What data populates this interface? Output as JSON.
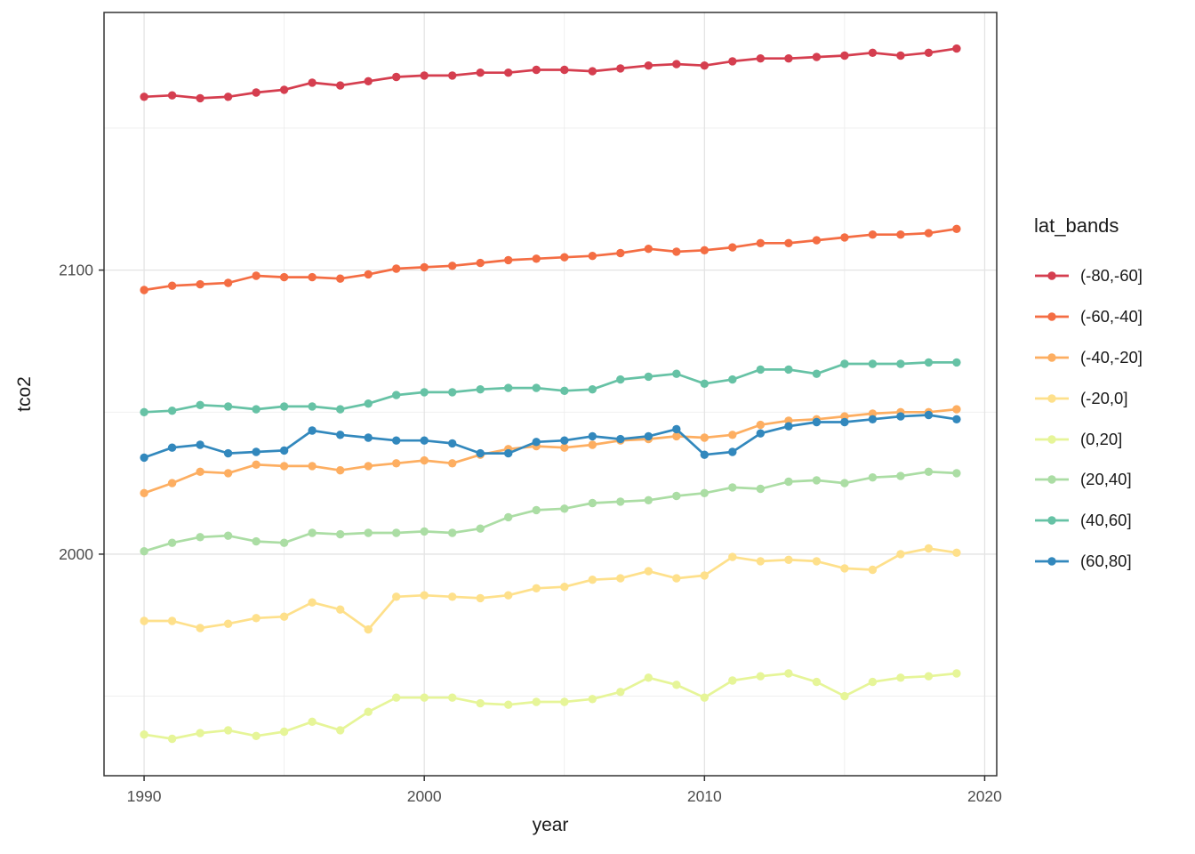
{
  "chart_data": {
    "type": "line",
    "title": "",
    "xlabel": "year",
    "ylabel": "tco2",
    "legend_title": "lat_bands",
    "legend_position": "right",
    "grid": true,
    "x": [
      1990,
      1991,
      1992,
      1993,
      1994,
      1995,
      1996,
      1997,
      1998,
      1999,
      2000,
      2001,
      2002,
      2003,
      2004,
      2005,
      2006,
      2007,
      2008,
      2009,
      2010,
      2011,
      2012,
      2013,
      2014,
      2015,
      2016,
      2017,
      2018,
      2019
    ],
    "x_ticks": [
      1990,
      2000,
      2010,
      2020
    ],
    "x_minor_ticks": [
      1995,
      2005,
      2015
    ],
    "y_ticks": [
      2000,
      2100
    ],
    "y_minor_ticks": [
      1950,
      2050,
      2150
    ],
    "xlim": [
      1988.57,
      2020.43
    ],
    "ylim": [
      1922.0,
      2190.7
    ],
    "series": [
      {
        "name": "(-80,-60]",
        "color": "#D53E4F",
        "values": [
          2161,
          2161.5,
          2160.5,
          2161,
          2162.5,
          2163.5,
          2166,
          2165,
          2166.5,
          2168,
          2168.5,
          2168.5,
          2169.5,
          2169.5,
          2170.5,
          2170.5,
          2170,
          2171,
          2172,
          2172.5,
          2172,
          2173.5,
          2174.5,
          2174.5,
          2175,
          2175.5,
          2176.5,
          2175.5,
          2176.5,
          2178
        ]
      },
      {
        "name": "(-60,-40]",
        "color": "#F46D43",
        "values": [
          2093,
          2094.5,
          2095,
          2095.5,
          2098,
          2097.5,
          2097.5,
          2097,
          2098.5,
          2100.5,
          2101,
          2101.5,
          2102.5,
          2103.5,
          2104,
          2104.5,
          2105,
          2106,
          2107.5,
          2106.5,
          2107,
          2108,
          2109.5,
          2109.5,
          2110.5,
          2111.5,
          2112.5,
          2112.5,
          2113,
          2114.5
        ]
      },
      {
        "name": "(-40,-20]",
        "color": "#FDAE61",
        "values": [
          2021.5,
          2025,
          2029,
          2028.5,
          2031.5,
          2031,
          2031,
          2029.5,
          2031,
          2032,
          2033,
          2032,
          2035,
          2037,
          2038,
          2037.5,
          2038.5,
          2040,
          2040.5,
          2041.5,
          2041,
          2042,
          2045.5,
          2047,
          2047.5,
          2048.5,
          2049.5,
          2050,
          2050,
          2051
        ]
      },
      {
        "name": "(-20,0]",
        "color": "#FEE08B",
        "values": [
          1976.5,
          1976.5,
          1974,
          1975.5,
          1977.5,
          1978,
          1983,
          1980.5,
          1973.5,
          1985,
          1985.5,
          1985,
          1984.5,
          1985.5,
          1988,
          1988.5,
          1991,
          1991.5,
          1994,
          1991.5,
          1992.5,
          1999,
          1997.5,
          1998,
          1997.5,
          1995,
          1994.5,
          2000,
          2002,
          2000.5
        ]
      },
      {
        "name": "(0,20]",
        "color": "#E6F598",
        "values": [
          1936.5,
          1935,
          1937,
          1938,
          1936,
          1937.5,
          1941,
          1938,
          1944.5,
          1949.5,
          1949.5,
          1949.5,
          1947.5,
          1947,
          1948,
          1948,
          1949,
          1951.5,
          1956.5,
          1954,
          1949.5,
          1955.5,
          1957,
          1958,
          1955,
          1950,
          1955,
          1956.5,
          1957,
          1958
        ]
      },
      {
        "name": "(20,40]",
        "color": "#ABDDA4",
        "values": [
          2001,
          2004,
          2006,
          2006.5,
          2004.5,
          2004,
          2007.5,
          2007,
          2007.5,
          2007.5,
          2008,
          2007.5,
          2009,
          2013,
          2015.5,
          2016,
          2018,
          2018.5,
          2019,
          2020.5,
          2021.5,
          2023.5,
          2023,
          2025.5,
          2026,
          2025,
          2027,
          2027.5,
          2029,
          2028.5
        ]
      },
      {
        "name": "(40,60]",
        "color": "#66C2A5",
        "values": [
          2050,
          2050.5,
          2052.5,
          2052,
          2051,
          2052,
          2052,
          2051,
          2053,
          2056,
          2057,
          2057,
          2058,
          2058.5,
          2058.5,
          2057.5,
          2058,
          2061.5,
          2062.5,
          2063.5,
          2060,
          2061.5,
          2065,
          2065,
          2063.5,
          2067,
          2067,
          2067,
          2067.5,
          2067.5
        ]
      },
      {
        "name": "(60,80]",
        "color": "#3288BD",
        "values": [
          2034,
          2037.5,
          2038.5,
          2035.5,
          2036,
          2036.5,
          2043.5,
          2042,
          2041,
          2040,
          2040,
          2039,
          2035.5,
          2035.5,
          2039.5,
          2040,
          2041.5,
          2040.5,
          2041.5,
          2044,
          2035,
          2036,
          2042.5,
          2045,
          2046.5,
          2046.5,
          2047.5,
          2048.5,
          2049,
          2047.5
        ]
      }
    ]
  },
  "colors": {
    "background": "#FFFFFF",
    "panel_background": "#FFFFFF",
    "grid_major": "#E4E4E4",
    "grid_minor": "#EDEDED",
    "panel_border": "#333333",
    "tick_mark": "#333333",
    "tick_label": "#4D4D4D",
    "axis_title": "#1A1A1A",
    "legend_text": "#1A1A1A"
  }
}
